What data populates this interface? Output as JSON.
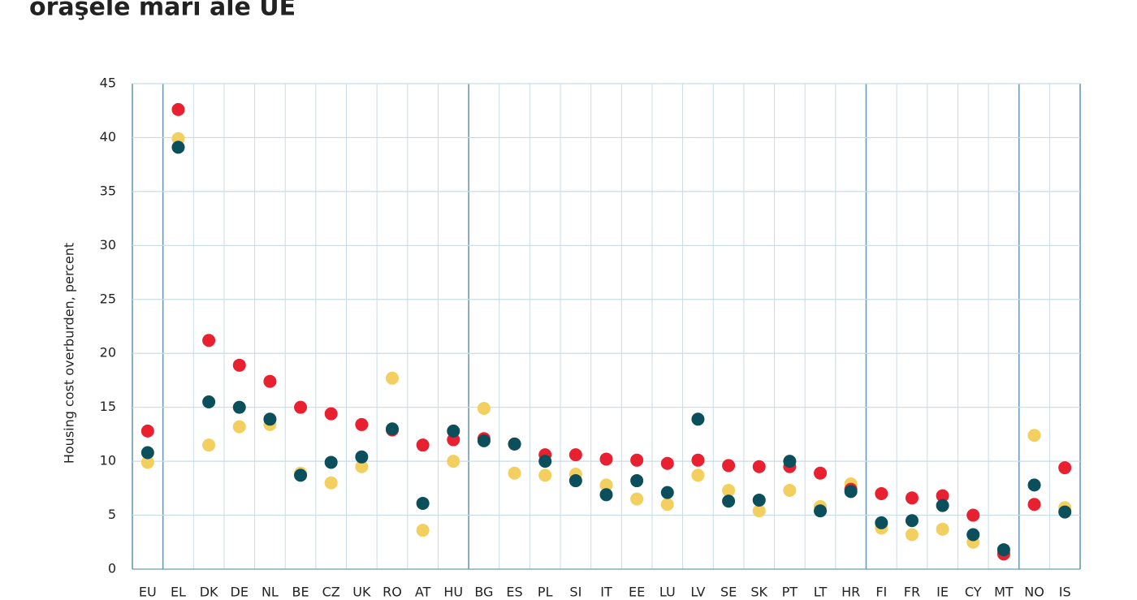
{
  "chart_data": {
    "type": "scatter",
    "title": "oraşele mari ale UE",
    "y_label": "Housing cost overburden, percent",
    "categories": [
      "EU",
      "EL",
      "DK",
      "DE",
      "NL",
      "BE",
      "CZ",
      "UK",
      "RO",
      "AT",
      "HU",
      "BG",
      "ES",
      "PL",
      "SI",
      "IT",
      "EE",
      "LU",
      "LV",
      "SE",
      "SK",
      "PT",
      "LT",
      "HR",
      "FI",
      "FR",
      "IE",
      "CY",
      "MT",
      "NO",
      "IS"
    ],
    "series": [
      {
        "color": "#f2cf5f",
        "values": [
          9.9,
          39.9,
          11.5,
          13.2,
          13.4,
          8.9,
          8.0,
          9.5,
          17.7,
          3.6,
          10.0,
          14.9,
          8.9,
          8.7,
          8.8,
          7.8,
          6.5,
          6.0,
          8.7,
          7.3,
          5.4,
          7.3,
          5.8,
          7.9,
          3.8,
          3.2,
          3.7,
          2.5,
          1.5,
          12.4,
          5.7
        ]
      },
      {
        "color": "#e8202f",
        "values": [
          12.8,
          42.6,
          21.2,
          18.9,
          17.4,
          15.0,
          14.4,
          13.4,
          12.9,
          11.5,
          12.0,
          12.1,
          11.6,
          10.6,
          10.6,
          10.2,
          10.1,
          9.8,
          10.1,
          9.6,
          9.5,
          9.5,
          8.9,
          7.4,
          7.0,
          6.6,
          6.8,
          5.0,
          1.4,
          6.0,
          9.4
        ]
      },
      {
        "color": "#0b4f5c",
        "values": [
          10.8,
          39.1,
          15.5,
          15.0,
          13.9,
          8.7,
          9.9,
          10.4,
          13.0,
          6.1,
          12.8,
          11.9,
          11.6,
          10.0,
          8.2,
          6.9,
          8.2,
          7.1,
          13.9,
          6.3,
          6.4,
          10.0,
          5.4,
          7.2,
          4.3,
          4.5,
          5.9,
          3.2,
          1.8,
          7.8,
          5.3
        ]
      }
    ],
    "ylim": [
      0,
      45
    ],
    "yticks": [
      0,
      5,
      10,
      15,
      20,
      25,
      30,
      35,
      40,
      45
    ],
    "grid": true
  }
}
